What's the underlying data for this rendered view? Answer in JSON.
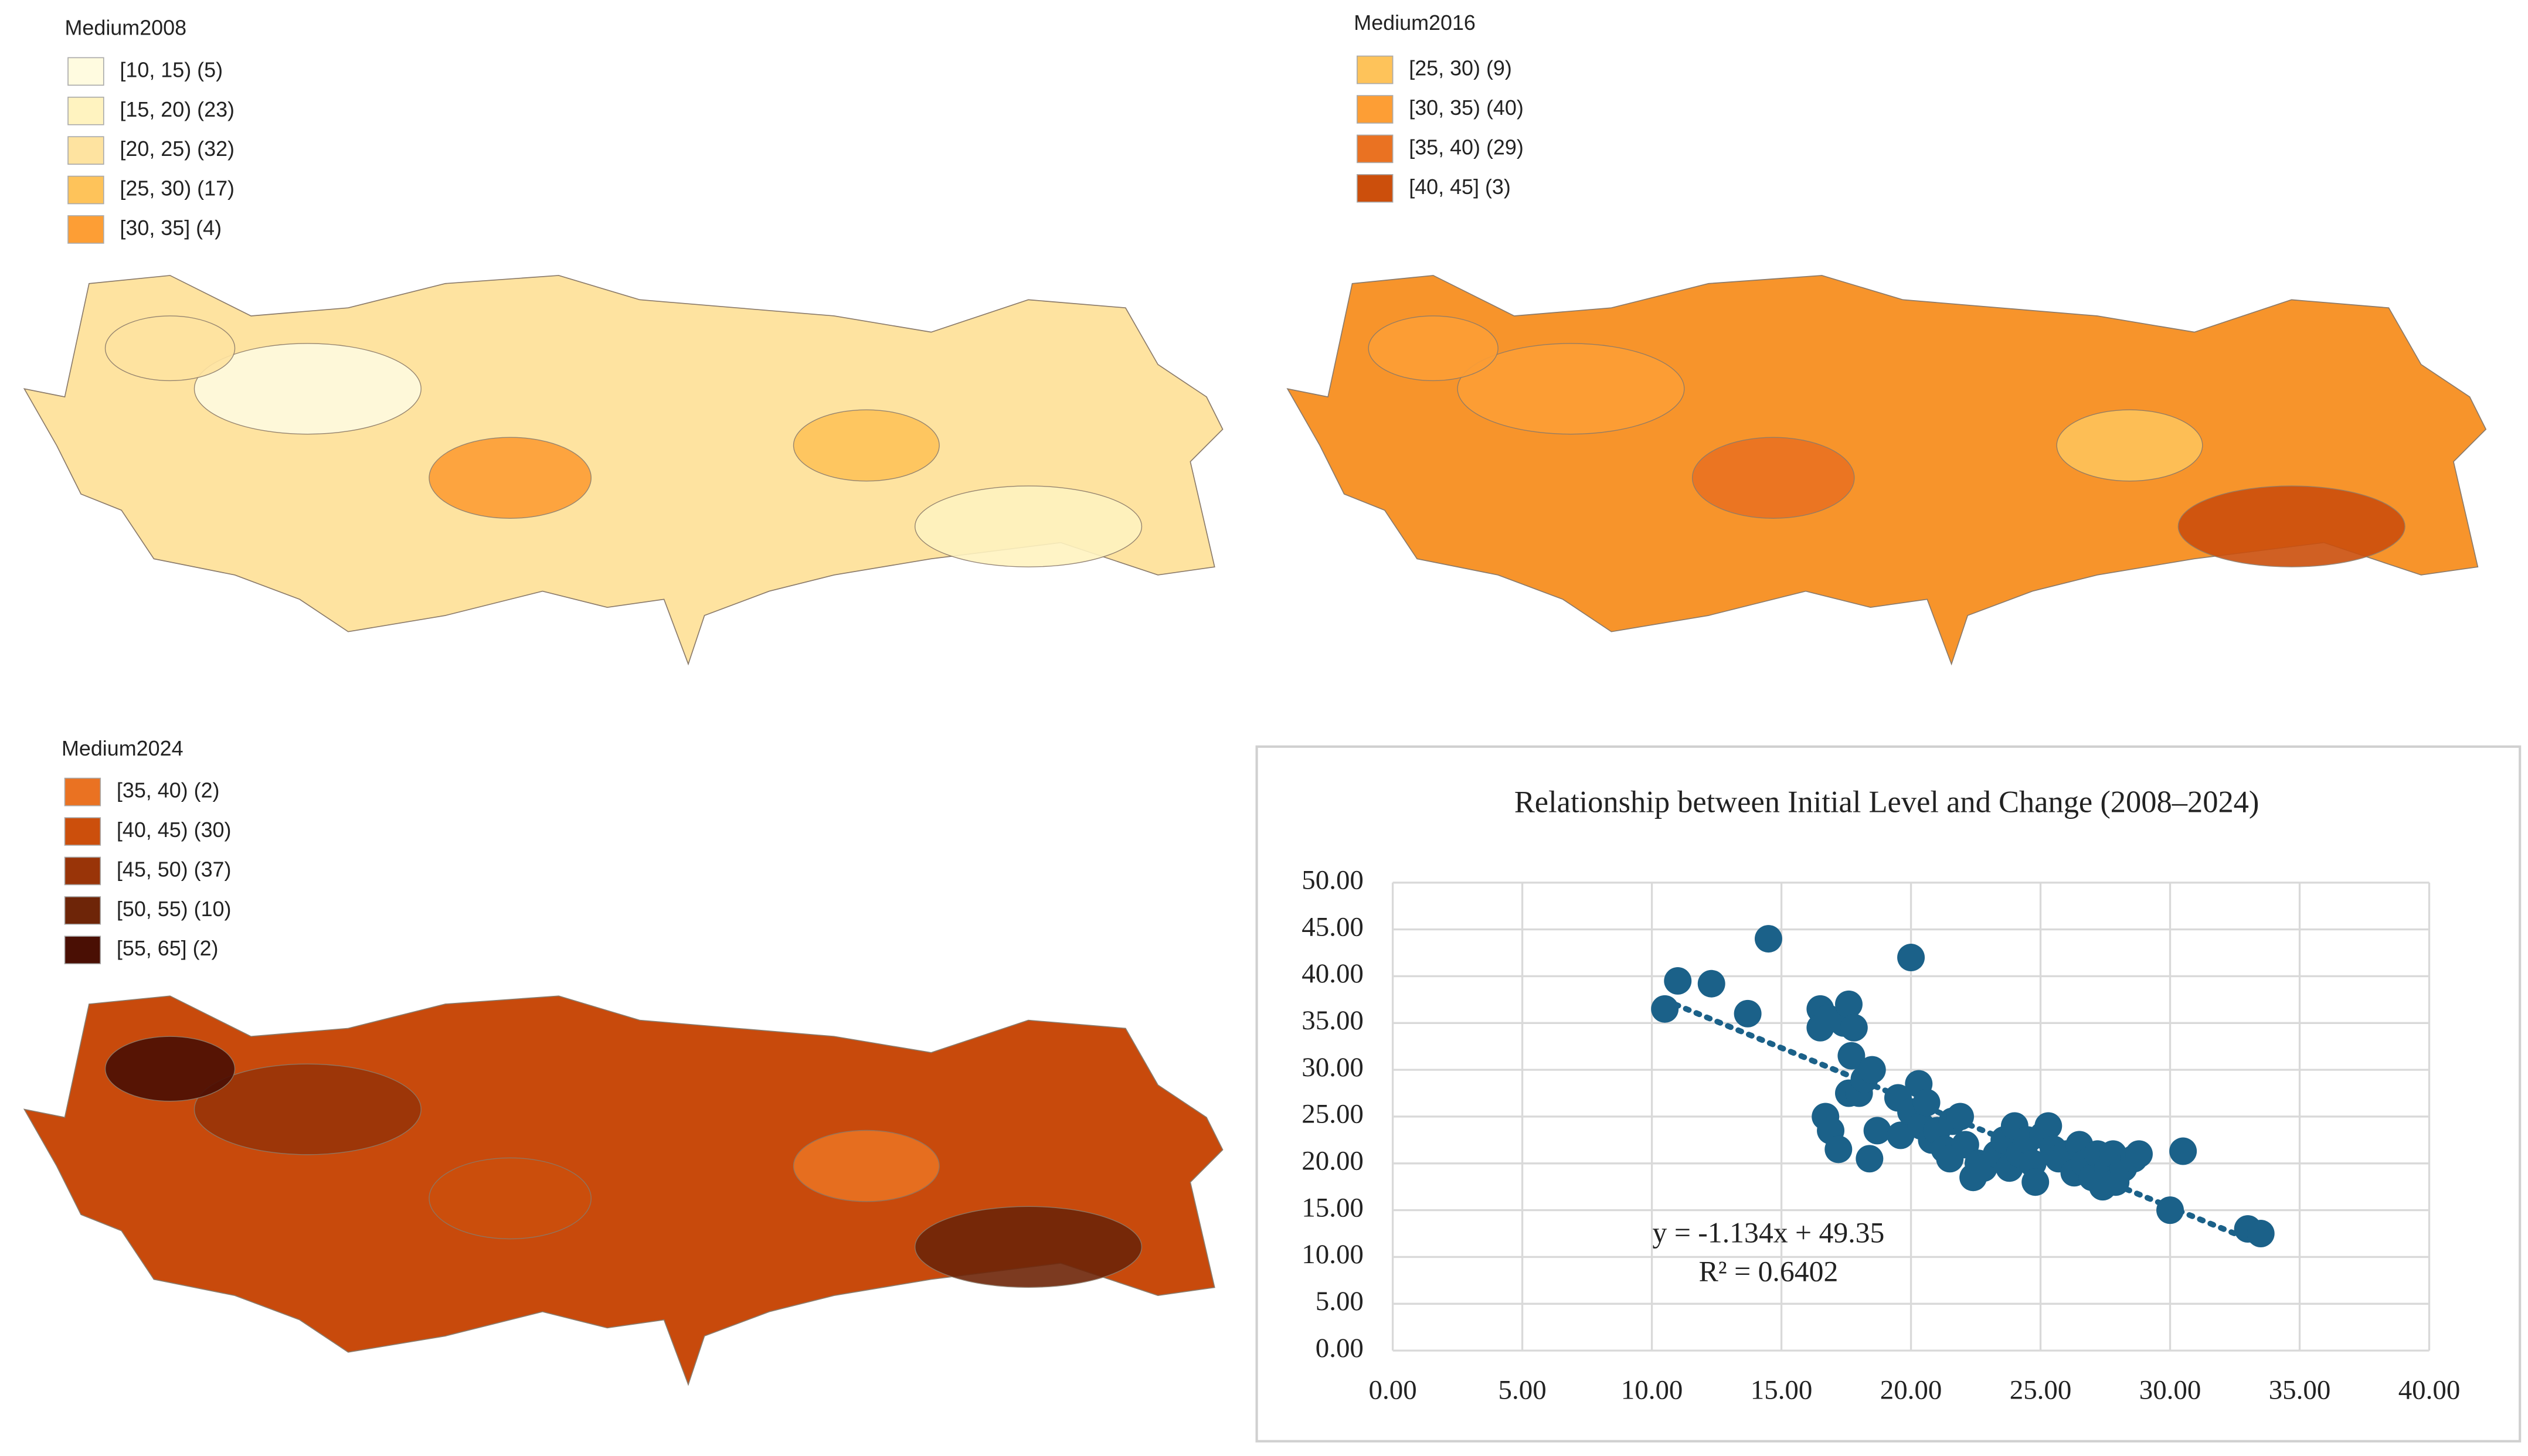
{
  "chart_data": [
    {
      "type": "map",
      "title": "Medium2008",
      "fill": "#fee3a0",
      "legend": [
        {
          "label": "[10, 15) (5)",
          "color": "#fffbe0"
        },
        {
          "label": "[15, 20) (23)",
          "color": "#fff3c0"
        },
        {
          "label": "[20, 25) (32)",
          "color": "#fee3a0"
        },
        {
          "label": "[25, 30) (17)",
          "color": "#fec35a"
        },
        {
          "label": "[30, 35] (4)",
          "color": "#fd9e35"
        }
      ]
    },
    {
      "type": "map",
      "title": "Medium2016",
      "fill": "#f7942b",
      "legend": [
        {
          "label": "[25, 30) (9)",
          "color": "#fec35a"
        },
        {
          "label": "[30, 35) (40)",
          "color": "#fd9e35"
        },
        {
          "label": "[35, 40) (29)",
          "color": "#ea7222"
        },
        {
          "label": "[40, 45] (3)",
          "color": "#cc4f0c"
        }
      ]
    },
    {
      "type": "map",
      "title": "Medium2024",
      "fill": "#c84a0c",
      "legend": [
        {
          "label": "[35, 40) (2)",
          "color": "#ea7222"
        },
        {
          "label": "[40, 45) (30)",
          "color": "#cc4f0c"
        },
        {
          "label": "[45, 50) (37)",
          "color": "#993408"
        },
        {
          "label": "[50, 55) (10)",
          "color": "#6e2508"
        },
        {
          "label": "[55, 65] (2)",
          "color": "#4a0f04"
        }
      ]
    },
    {
      "type": "scatter",
      "title": "Relationship between Initial Level and Change (2008–2024)",
      "color": "#1b6189",
      "grid": true,
      "x": [
        10.5,
        11,
        12.3,
        13.7,
        14.5,
        16.5,
        16.5,
        16.8,
        16.7,
        16.9,
        17.2,
        17.4,
        17.6,
        17.8,
        17.7,
        17.6,
        18,
        18.2,
        18.5,
        18.4,
        18.7,
        20,
        19.5,
        19.6,
        20,
        20.3,
        20.4,
        20.6,
        20.8,
        21,
        21.3,
        21.6,
        21.9,
        21.5,
        22.1,
        22.4,
        22.6,
        22.8,
        23.3,
        23.6,
        23.8,
        24,
        24.2,
        24.5,
        24.7,
        24.8,
        25.1,
        25.3,
        25.5,
        25.7,
        26,
        26.3,
        26.5,
        26.7,
        27,
        27.2,
        27.4,
        27.6,
        27.9,
        27.8,
        28.2,
        28.6,
        28.8,
        30,
        30.5,
        33,
        33.5
      ],
      "values": [
        36.5,
        39.5,
        39.2,
        36,
        44,
        36.5,
        34.5,
        35.5,
        25,
        23.5,
        21.5,
        35,
        37,
        34.5,
        31.5,
        27.5,
        27.5,
        29,
        30,
        20.5,
        23.5,
        42,
        27,
        23,
        25.5,
        28.5,
        24,
        26.5,
        22.5,
        23.5,
        21.5,
        24.5,
        25,
        20.5,
        22,
        18.5,
        20,
        19.5,
        21,
        22.5,
        19.5,
        24,
        21,
        22.5,
        20,
        18,
        23,
        24,
        21.5,
        20.5,
        21,
        19,
        22,
        20,
        18.5,
        21,
        17.5,
        19.5,
        18,
        21,
        19.5,
        20.5,
        21,
        15,
        21.3,
        13,
        12.5
      ],
      "trendline": {
        "label": "y = -1.134x + 49.35",
        "slope": -1.134,
        "intercept": 49.35,
        "r2_label": "R² = 0.6402"
      },
      "xlim": [
        0,
        40
      ],
      "ylim": [
        0,
        50
      ],
      "xticks": [
        {
          "value": 0,
          "label": "0.00"
        },
        {
          "value": 5,
          "label": "5.00"
        },
        {
          "value": 10,
          "label": "10.00"
        },
        {
          "value": 15,
          "label": "15.00"
        },
        {
          "value": 20,
          "label": "20.00"
        },
        {
          "value": 25,
          "label": "25.00"
        },
        {
          "value": 30,
          "label": "30.00"
        },
        {
          "value": 35,
          "label": "35.00"
        },
        {
          "value": 40,
          "label": "40.00"
        }
      ],
      "yticks": [
        {
          "value": 0,
          "label": "0.00"
        },
        {
          "value": 5,
          "label": "5.00"
        },
        {
          "value": 10,
          "label": "10.00"
        },
        {
          "value": 15,
          "label": "15.00"
        },
        {
          "value": 20,
          "label": "20.00"
        },
        {
          "value": 25,
          "label": "25.00"
        },
        {
          "value": 30,
          "label": "30.00"
        },
        {
          "value": 35,
          "label": "35.00"
        },
        {
          "value": 40,
          "label": "40.00"
        },
        {
          "value": 45,
          "label": "45.00"
        },
        {
          "value": 50,
          "label": "50.00"
        }
      ]
    }
  ]
}
